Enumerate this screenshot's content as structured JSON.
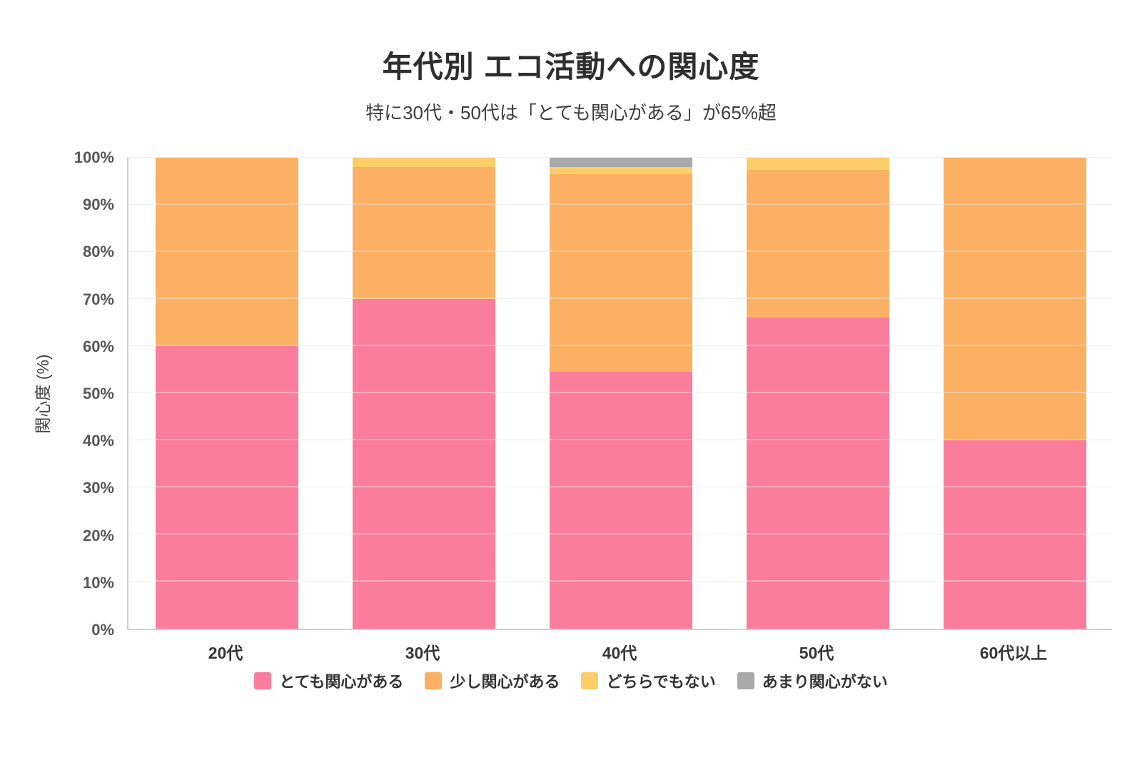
{
  "header": {
    "title": "年代別 エコ活動への関心度",
    "subtitle": "特に30代・50代は「とても関心がある」が65%超"
  },
  "chart_data": {
    "type": "bar",
    "stacked": true,
    "unit": "%",
    "title": "年代別 エコ活動への関心度",
    "subtitle": "特に30代・50代は「とても関心がある」が65%超",
    "categories": [
      "20代",
      "30代",
      "40代",
      "50代",
      "60代以上"
    ],
    "series": [
      {
        "name": "とても関心がある",
        "color": "#fa7d9c",
        "values": [
          60,
          70,
          54.5,
          66,
          40
        ]
      },
      {
        "name": "少し関心がある",
        "color": "#fcb063",
        "values": [
          40,
          28,
          42,
          31.5,
          60
        ]
      },
      {
        "name": "どちらでもない",
        "color": "#fbce68",
        "values": [
          0,
          2,
          1.5,
          2.5,
          0
        ]
      },
      {
        "name": "あまり関心がない",
        "color": "#a9a9a9",
        "values": [
          0,
          0,
          2,
          0,
          0
        ]
      }
    ],
    "ylabel": "関心度 (%)",
    "ylim": [
      0,
      100
    ],
    "y_tick_step": 10,
    "y_tick_labels": [
      "0%",
      "10%",
      "20%",
      "30%",
      "40%",
      "50%",
      "60%",
      "70%",
      "80%",
      "90%",
      "100%"
    ],
    "grid": true,
    "legend_position": "bottom",
    "colors": {
      "grid": "#e8e8e8",
      "axis": "#cfcfcf",
      "background": "#ffffff"
    }
  }
}
